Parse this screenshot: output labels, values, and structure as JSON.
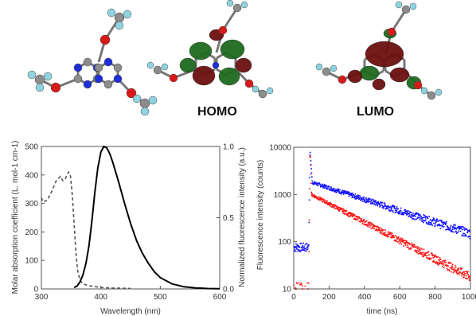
{
  "colors": {
    "carbon": "#8c8c8c",
    "nitrogen": "#1e2fd8",
    "oxygen": "#d61a1a",
    "fluorine": "#8fd3e0",
    "hydrogen": "#d8d8d8",
    "orbital_green": "#1f6b1f",
    "orbital_red": "#6b1010",
    "absorption_line": "#555555",
    "fluorescence_line": "#000000",
    "decay_blue": "#1010ff",
    "decay_red": "#ff1010"
  },
  "molecules": {
    "structure_icon": "triazine-molecule-icon",
    "homo_label": "HOMO",
    "lumo_label": "LUMO"
  },
  "chart_data": [
    {
      "type": "line",
      "title": "",
      "xlabel": "Wavelength (nm)",
      "ylabel": "Molar absorption coefficient (L. mol-1 cm-1)",
      "ylabel_right": "Normalized fluorescence intensity (a.u.)",
      "xlim": [
        300,
        600
      ],
      "ylim": [
        0,
        500
      ],
      "ylim_right": [
        0,
        1.0
      ],
      "xticks": [
        300,
        400,
        500,
        600
      ],
      "yticks": [
        0,
        100,
        200,
        300,
        400,
        500
      ],
      "yticks_right": [
        "0.0",
        "0.5",
        "1.0"
      ],
      "series": [
        {
          "style": "dashed",
          "axis": "left",
          "x": [
            300,
            303,
            310,
            318,
            325,
            332,
            336,
            340,
            343,
            346,
            349,
            352,
            355,
            358,
            361,
            365,
            370,
            378,
            390,
            400,
            420,
            450
          ],
          "y": [
            320,
            305,
            312,
            345,
            380,
            395,
            380,
            385,
            400,
            410,
            395,
            330,
            230,
            130,
            65,
            30,
            18,
            12,
            8,
            5,
            3,
            2
          ]
        },
        {
          "style": "solid",
          "axis": "right",
          "x": [
            355,
            360,
            365,
            370,
            375,
            380,
            385,
            390,
            395,
            400,
            405,
            410,
            415,
            420,
            430,
            440,
            450,
            460,
            470,
            480,
            490,
            500,
            520,
            540,
            560,
            580,
            600
          ],
          "y": [
            0.01,
            0.02,
            0.05,
            0.1,
            0.18,
            0.3,
            0.48,
            0.68,
            0.85,
            0.96,
            1.0,
            0.99,
            0.95,
            0.89,
            0.75,
            0.6,
            0.46,
            0.34,
            0.25,
            0.18,
            0.12,
            0.08,
            0.035,
            0.015,
            0.007,
            0.003,
            0.001
          ]
        }
      ]
    },
    {
      "type": "scatter",
      "title": "",
      "xlabel": "time (ns)",
      "ylabel": "Fluorescence intensity (counts)",
      "xlim": [
        0,
        1000
      ],
      "ylim": [
        10,
        10000
      ],
      "yscale": "log",
      "xticks": [
        0,
        200,
        400,
        600,
        800,
        1000
      ],
      "yticks": [
        10,
        100,
        1000,
        10000
      ],
      "series": [
        {
          "color": "blue",
          "baseline": 75,
          "rise_time": 85,
          "peak_time": 92,
          "peak": 9000,
          "fast_end_time": 105,
          "fast_end_value": 1800,
          "end_value": 150
        },
        {
          "color": "red",
          "baseline": 11,
          "rise_time": 85,
          "peak_time": 92,
          "peak": 9000,
          "fast_end_time": 100,
          "fast_end_value": 1000,
          "end_value": 18
        }
      ]
    }
  ]
}
